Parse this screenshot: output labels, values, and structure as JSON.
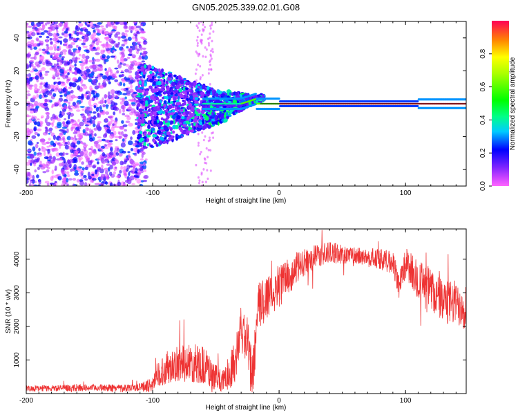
{
  "figure_title": "GN05.2025.339.02.01.G08",
  "chart_data": [
    {
      "type": "heatmap",
      "name": "spectrogram",
      "title": "",
      "xlabel": "Height of straight line (km)",
      "ylabel": "Frequency (Hz)",
      "xlim": [
        -200,
        148
      ],
      "ylim": [
        -50,
        50
      ],
      "xticks": [
        -200,
        -100,
        0,
        100
      ],
      "yticks": [
        -40,
        -20,
        0,
        20,
        40
      ],
      "colorbar": {
        "label": "Normalized spectral amplitude",
        "range": [
          0,
          1
        ],
        "ticks": [
          0.0,
          0.2,
          0.4,
          0.6,
          0.8
        ],
        "colormap": "rainbow (magenta-blue-cyan-green-yellow-red)"
      },
      "ridge": {
        "description": "dominant frequency line",
        "x_start": -100,
        "x_end": 148,
        "frequency_hz": 0
      }
    },
    {
      "type": "line",
      "name": "snr",
      "title": "",
      "xlabel": "Height of straight line (km)",
      "ylabel": "SNR (10 * v/v)",
      "xlim": [
        -200,
        148
      ],
      "ylim": [
        0,
        4900
      ],
      "xticks": [
        -200,
        -100,
        0,
        100
      ],
      "yticks": [
        1000,
        2000,
        3000,
        4000
      ],
      "series": [
        {
          "name": "SNR",
          "color": "#ee3333",
          "trend_points": [
            [
              -200,
              150
            ],
            [
              -180,
              160
            ],
            [
              -160,
              170
            ],
            [
              -140,
              170
            ],
            [
              -120,
              180
            ],
            [
              -110,
              190
            ],
            [
              -100,
              250
            ],
            [
              -95,
              600
            ],
            [
              -85,
              850
            ],
            [
              -75,
              900
            ],
            [
              -65,
              900
            ],
            [
              -58,
              800
            ],
            [
              -52,
              500
            ],
            [
              -45,
              350
            ],
            [
              -40,
              600
            ],
            [
              -34,
              1100
            ],
            [
              -30,
              1900
            ],
            [
              -25,
              1500
            ],
            [
              -21,
              350
            ],
            [
              -17,
              2500
            ],
            [
              -10,
              2900
            ],
            [
              0,
              3200
            ],
            [
              10,
              3600
            ],
            [
              20,
              3900
            ],
            [
              30,
              4100
            ],
            [
              40,
              4200
            ],
            [
              50,
              4150
            ],
            [
              60,
              4100
            ],
            [
              70,
              4050
            ],
            [
              80,
              4000
            ],
            [
              90,
              3900
            ],
            [
              95,
              3200
            ],
            [
              100,
              3900
            ],
            [
              110,
              3400
            ],
            [
              120,
              3100
            ],
            [
              130,
              2700
            ],
            [
              140,
              2700
            ],
            [
              148,
              2600
            ]
          ],
          "noise_amplitude_points": [
            [
              -200,
              90
            ],
            [
              -110,
              110
            ],
            [
              -100,
              250
            ],
            [
              -90,
              500
            ],
            [
              -60,
              600
            ],
            [
              -45,
              300
            ],
            [
              -35,
              700
            ],
            [
              -20,
              800
            ],
            [
              0,
              700
            ],
            [
              20,
              400
            ],
            [
              60,
              250
            ],
            [
              90,
              350
            ],
            [
              110,
              600
            ],
            [
              148,
              700
            ]
          ]
        }
      ]
    }
  ]
}
